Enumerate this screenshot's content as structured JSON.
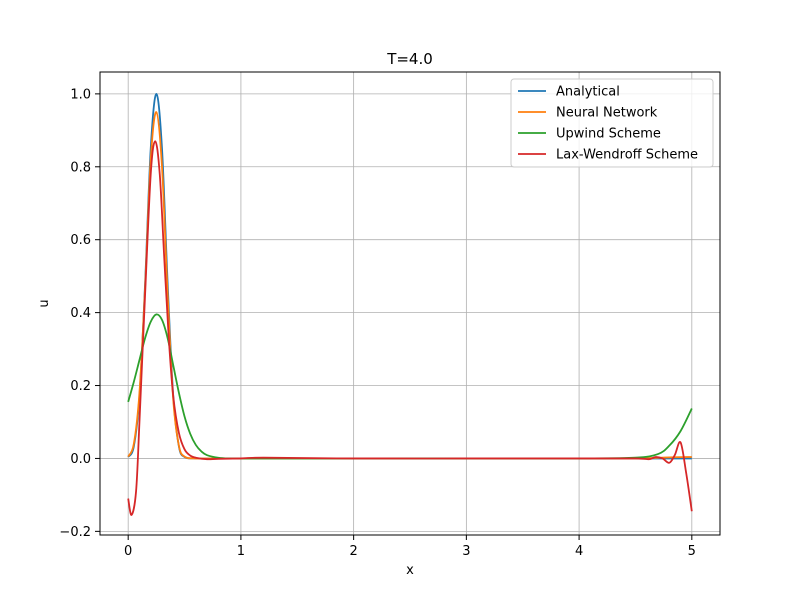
{
  "chart_data": {
    "type": "line",
    "title": "T=4.0",
    "xlabel": "x",
    "ylabel": "u",
    "xlim": [
      -0.25,
      5.25
    ],
    "ylim": [
      -0.21,
      1.06
    ],
    "xticks": [
      0,
      1,
      2,
      3,
      4,
      5
    ],
    "yticks": [
      -0.2,
      0.0,
      0.2,
      0.4,
      0.6,
      0.8,
      1.0
    ],
    "xtick_labels": [
      "0",
      "1",
      "2",
      "3",
      "4",
      "5"
    ],
    "ytick_labels": [
      "−0.2",
      "0.0",
      "0.2",
      "0.4",
      "0.6",
      "0.8",
      "1.0"
    ],
    "grid": true,
    "legend_position": "top-right",
    "series": [
      {
        "name": "Analytical",
        "color": "#1f77b4",
        "x": [
          0,
          0.05,
          0.1,
          0.15,
          0.2,
          0.25,
          0.3,
          0.35,
          0.4,
          0.45,
          0.5,
          0.6,
          0.8,
          1.0,
          2.0,
          3.0,
          4.0,
          5.0
        ],
        "y": [
          0.004,
          0.033,
          0.17,
          0.48,
          0.85,
          1.0,
          0.85,
          0.48,
          0.17,
          0.033,
          0.004,
          0.0,
          0.0,
          0.0,
          0.0,
          0.0,
          0.0,
          0.0
        ]
      },
      {
        "name": "Neural Network",
        "color": "#ff7f0e",
        "x": [
          0,
          0.05,
          0.1,
          0.15,
          0.2,
          0.25,
          0.3,
          0.35,
          0.4,
          0.45,
          0.5,
          0.6,
          0.8,
          1.0,
          2.0,
          3.0,
          4.0,
          4.5,
          4.8,
          5.0
        ],
        "y": [
          0.005,
          0.04,
          0.18,
          0.47,
          0.82,
          0.95,
          0.8,
          0.45,
          0.16,
          0.035,
          0.005,
          0.0,
          0.0,
          0.0,
          0.0,
          0.0,
          0.0,
          0.0,
          0.003,
          0.004
        ]
      },
      {
        "name": "Upwind Scheme",
        "color": "#2ca02c",
        "x": [
          0,
          0.05,
          0.1,
          0.15,
          0.2,
          0.25,
          0.3,
          0.35,
          0.4,
          0.45,
          0.5,
          0.55,
          0.6,
          0.65,
          0.7,
          0.8,
          0.9,
          1.0,
          2.0,
          3.0,
          4.0,
          4.5,
          4.7,
          4.8,
          4.9,
          5.0
        ],
        "y": [
          0.155,
          0.21,
          0.27,
          0.33,
          0.375,
          0.395,
          0.38,
          0.33,
          0.255,
          0.18,
          0.115,
          0.068,
          0.037,
          0.019,
          0.009,
          0.002,
          0.0,
          0.0,
          0.0,
          0.0,
          0.0,
          0.002,
          0.012,
          0.035,
          0.075,
          0.137
        ]
      },
      {
        "name": "Lax-Wendroff Scheme",
        "color": "#d62728",
        "x": [
          0,
          0.03,
          0.07,
          0.1,
          0.15,
          0.2,
          0.24,
          0.28,
          0.32,
          0.36,
          0.4,
          0.45,
          0.5,
          0.55,
          0.6,
          0.7,
          0.8,
          1.0,
          1.2,
          2.0,
          3.0,
          4.0,
          4.5,
          4.62,
          4.68,
          4.74,
          4.8,
          4.85,
          4.9,
          4.95,
          5.0
        ],
        "y": [
          -0.11,
          -0.155,
          -0.09,
          0.1,
          0.45,
          0.78,
          0.87,
          0.78,
          0.55,
          0.33,
          0.17,
          0.07,
          0.025,
          0.008,
          0.002,
          -0.002,
          -0.001,
          0.0,
          0.002,
          0.0,
          0.0,
          0.0,
          0.0,
          -0.002,
          0.004,
          0.0,
          -0.012,
          0.01,
          0.044,
          -0.04,
          -0.145
        ]
      }
    ]
  }
}
